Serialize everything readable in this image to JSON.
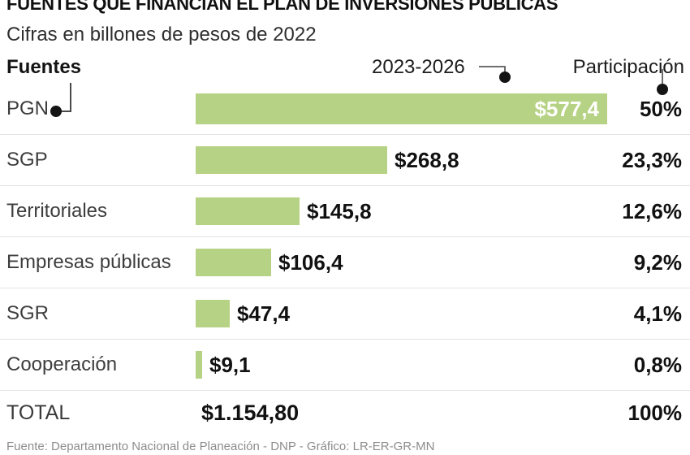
{
  "header": {
    "title": "FUENTES QUE FINANCIAN EL PLAN DE INVERSIONES PÚBLICAS",
    "subtitle": "Cifras en billones de pesos de 2022",
    "col_source": "Fuentes",
    "col_period": "2023-2026",
    "col_share": "Participación"
  },
  "footer": {
    "credit": "Fuente: Departamento Nacional de Planeación - DNP - Gráfico: LR-ER-GR-MN"
  },
  "colors": {
    "bar": "#b6d284",
    "bar_value_text": "#ffffff",
    "value_text": "#111111",
    "label_text": "#3d3d3d",
    "divider": "#e3e3e3",
    "footer_text": "#8c8c8c"
  },
  "chart_data": {
    "type": "bar",
    "orientation": "horizontal",
    "title": "FUENTES QUE FINANCIAN EL PLAN DE INVERSIONES PÚBLICAS",
    "subtitle": "Cifras en billones de pesos de 2022",
    "unit": "billones de pesos de 2022",
    "period": "2023-2026",
    "categories": [
      "PGN",
      "SGP",
      "Territoriales",
      "Empresas públicas",
      "SGR",
      "Cooperación"
    ],
    "values": [
      577.4,
      268.8,
      145.8,
      106.4,
      47.4,
      9.1
    ],
    "value_labels": [
      "$577,4",
      "$268,8",
      "$145,8",
      "$106,4",
      "$47,4",
      "$9,1"
    ],
    "shares_percent": [
      50,
      23.3,
      12.6,
      9.2,
      4.1,
      0.8
    ],
    "share_labels": [
      "50%",
      "23,3%",
      "12,6%",
      "9,2%",
      "4,1%",
      "0,8%"
    ],
    "total": {
      "label": "TOTAL",
      "value": 1154.8,
      "value_label": "$1.154,80",
      "share_label": "100%"
    },
    "xlim": [
      0,
      577.4
    ],
    "grid": false,
    "legend_position": "none",
    "value_label_inside_bar_for": "PGN"
  }
}
